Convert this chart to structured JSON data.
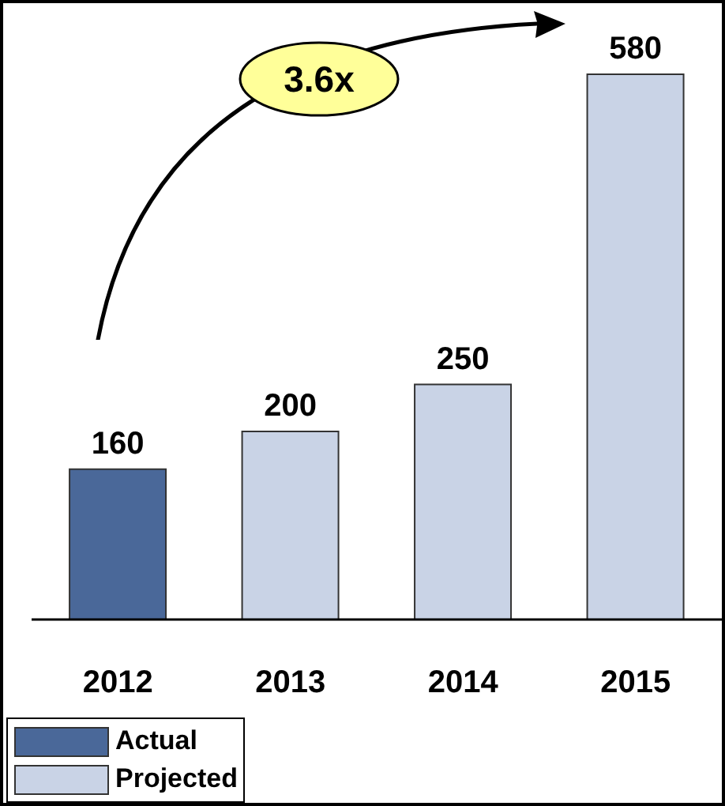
{
  "chart_data": {
    "type": "bar",
    "categories": [
      "2012",
      "2013",
      "2014",
      "2015"
    ],
    "stacked": true,
    "series": [
      {
        "name": "Actual",
        "color": "#4a6899",
        "values": [
          160,
          null,
          null,
          null
        ]
      },
      {
        "name": "Projected",
        "color": "#c9d3e6",
        "values": [
          null,
          200,
          250,
          580
        ]
      }
    ],
    "data_labels": true,
    "legend": "bottom left",
    "annotations": [
      "3.6x"
    ]
  }
}
